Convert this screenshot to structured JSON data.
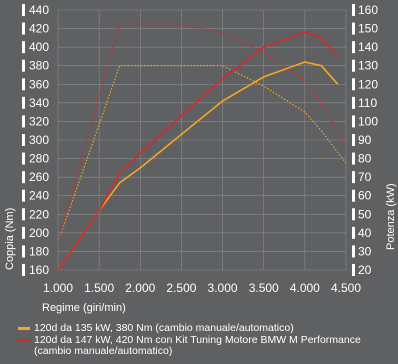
{
  "chart_data": {
    "type": "line",
    "xlabel": "Regime (giri/min)",
    "ylabel_left": "Coppia (Nm)",
    "ylabel_right": "Potenza (kW)",
    "x_ticks": [
      1000,
      1500,
      2000,
      2500,
      3000,
      3500,
      4000,
      4500
    ],
    "x_tick_labels": [
      "1.000",
      "1.500",
      "2.000",
      "2.500",
      "3.000",
      "3.500",
      "4.000",
      "4.500"
    ],
    "xlim": [
      1000,
      4500
    ],
    "ylim_left": [
      160,
      440
    ],
    "ylim_right": [
      20,
      160
    ],
    "y_left_ticks": [
      160,
      180,
      200,
      220,
      240,
      260,
      280,
      300,
      320,
      340,
      360,
      380,
      400,
      420,
      440
    ],
    "y_right_ticks": [
      20,
      30,
      40,
      50,
      60,
      70,
      80,
      90,
      100,
      110,
      120,
      130,
      140,
      150,
      160
    ],
    "colors": {
      "standard": "#f5a623",
      "tuned": "#d9252e",
      "background": "#5f6062"
    },
    "series": [
      {
        "name": "120d da 135 kW, 380 Nm (cambio manuale/automatico)",
        "kind": "power",
        "axis": "right",
        "color": "#f5a623",
        "x": [
          1000,
          1500,
          1750,
          2000,
          2500,
          3000,
          3500,
          4000,
          4200,
          4400
        ],
        "y": [
          20,
          52,
          67,
          75,
          93,
          111,
          124,
          132,
          130,
          120
        ]
      },
      {
        "name": "120d da 135 kW, 380 Nm (cambio manuale/automatico)",
        "kind": "torque",
        "axis": "left",
        "color": "#f5a623",
        "x": [
          1000,
          1750,
          2000,
          2500,
          3000,
          3500,
          4000,
          4200,
          4500
        ],
        "y": [
          190,
          380,
          380,
          380,
          380,
          358,
          330,
          310,
          275
        ]
      },
      {
        "name": "120d da 147 kW, 420 Nm con Kit Tuning Motore BMW M Performance (cambio manuale/automatico)",
        "kind": "power",
        "axis": "right",
        "color": "#d9252e",
        "x": [
          1000,
          1500,
          1750,
          2000,
          2500,
          3000,
          3500,
          4000,
          4200,
          4400
        ],
        "y": [
          20,
          52,
          72,
          83,
          103,
          123,
          140,
          148,
          145,
          135
        ]
      },
      {
        "name": "120d da 147 kW, 420 Nm con Kit Tuning Motore BMW M Performance (cambio manuale/automatico)",
        "kind": "torque",
        "axis": "left",
        "color": "#d9252e",
        "x": [
          1000,
          1750,
          2000,
          2500,
          3000,
          3500,
          4000,
          4200,
          4500
        ],
        "y": [
          190,
          425,
          425,
          425,
          415,
          395,
          365,
          340,
          295
        ]
      }
    ]
  },
  "legend": [
    {
      "label": "120d da 135 kW, 380 Nm (cambio manuale/automatico)",
      "color": "#f5a623"
    },
    {
      "label": "120d da 147 kW, 420 Nm con Kit Tuning Motore BMW M Performance (cambio manuale/automatico)",
      "color": "#d9252e"
    }
  ]
}
